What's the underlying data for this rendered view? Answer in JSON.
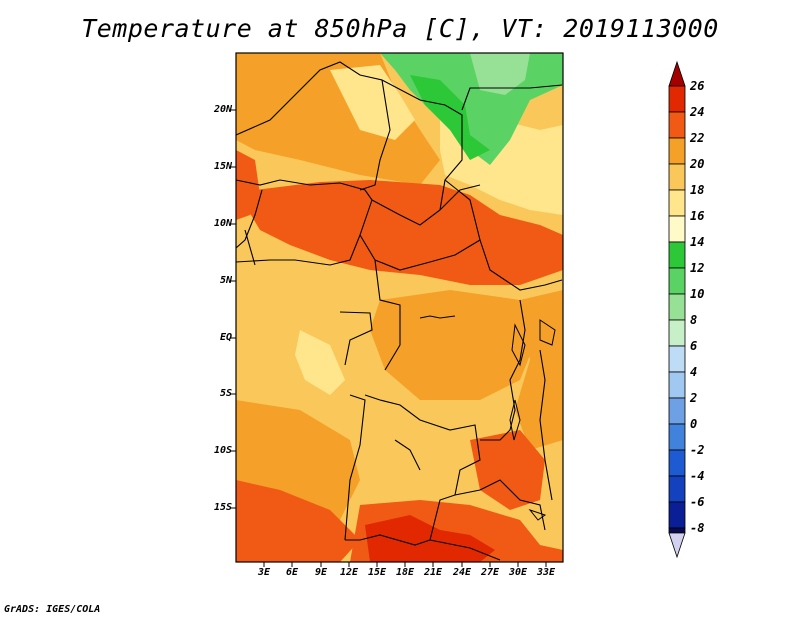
{
  "title": "Temperature at 850hPa [C], VT: 2019113000",
  "credit": "GrADS: IGES/COLA",
  "map": {
    "region": "Central Africa",
    "lat_labels": [
      "20N",
      "15N",
      "10N",
      "5N",
      "EQ",
      "5S",
      "10S",
      "15S"
    ],
    "lon_labels": [
      "3E",
      "6E",
      "9E",
      "12E",
      "15E",
      "18E",
      "21E",
      "24E",
      "27E",
      "30E",
      "33E"
    ]
  },
  "colorbar": {
    "labels": [
      "26",
      "24",
      "22",
      "20",
      "18",
      "16",
      "14",
      "12",
      "10",
      "8",
      "6",
      "4",
      "2",
      "0",
      "-2",
      "-4",
      "-6",
      "-8"
    ],
    "colors": [
      "#a50000",
      "#e12800",
      "#f05a14",
      "#f5a028",
      "#fac85a",
      "#ffe68c",
      "#fffac8",
      "#2dc837",
      "#5ad264",
      "#96e196",
      "#c8f0c8",
      "#bedcf5",
      "#a0c8f0",
      "#6ea0e6",
      "#4182dc",
      "#1e5ad2",
      "#1441be",
      "#0a1e96",
      "#0a0a50",
      "#d2d2f0"
    ]
  },
  "colors": {
    "background": "#ffffff",
    "field_base": "#fac85a",
    "warm": "#f5a028",
    "hot": "#f05a14",
    "very_hot": "#e12800",
    "cool": "#ffe68c",
    "green": "#5ad264",
    "dark_green": "#2dc837"
  }
}
